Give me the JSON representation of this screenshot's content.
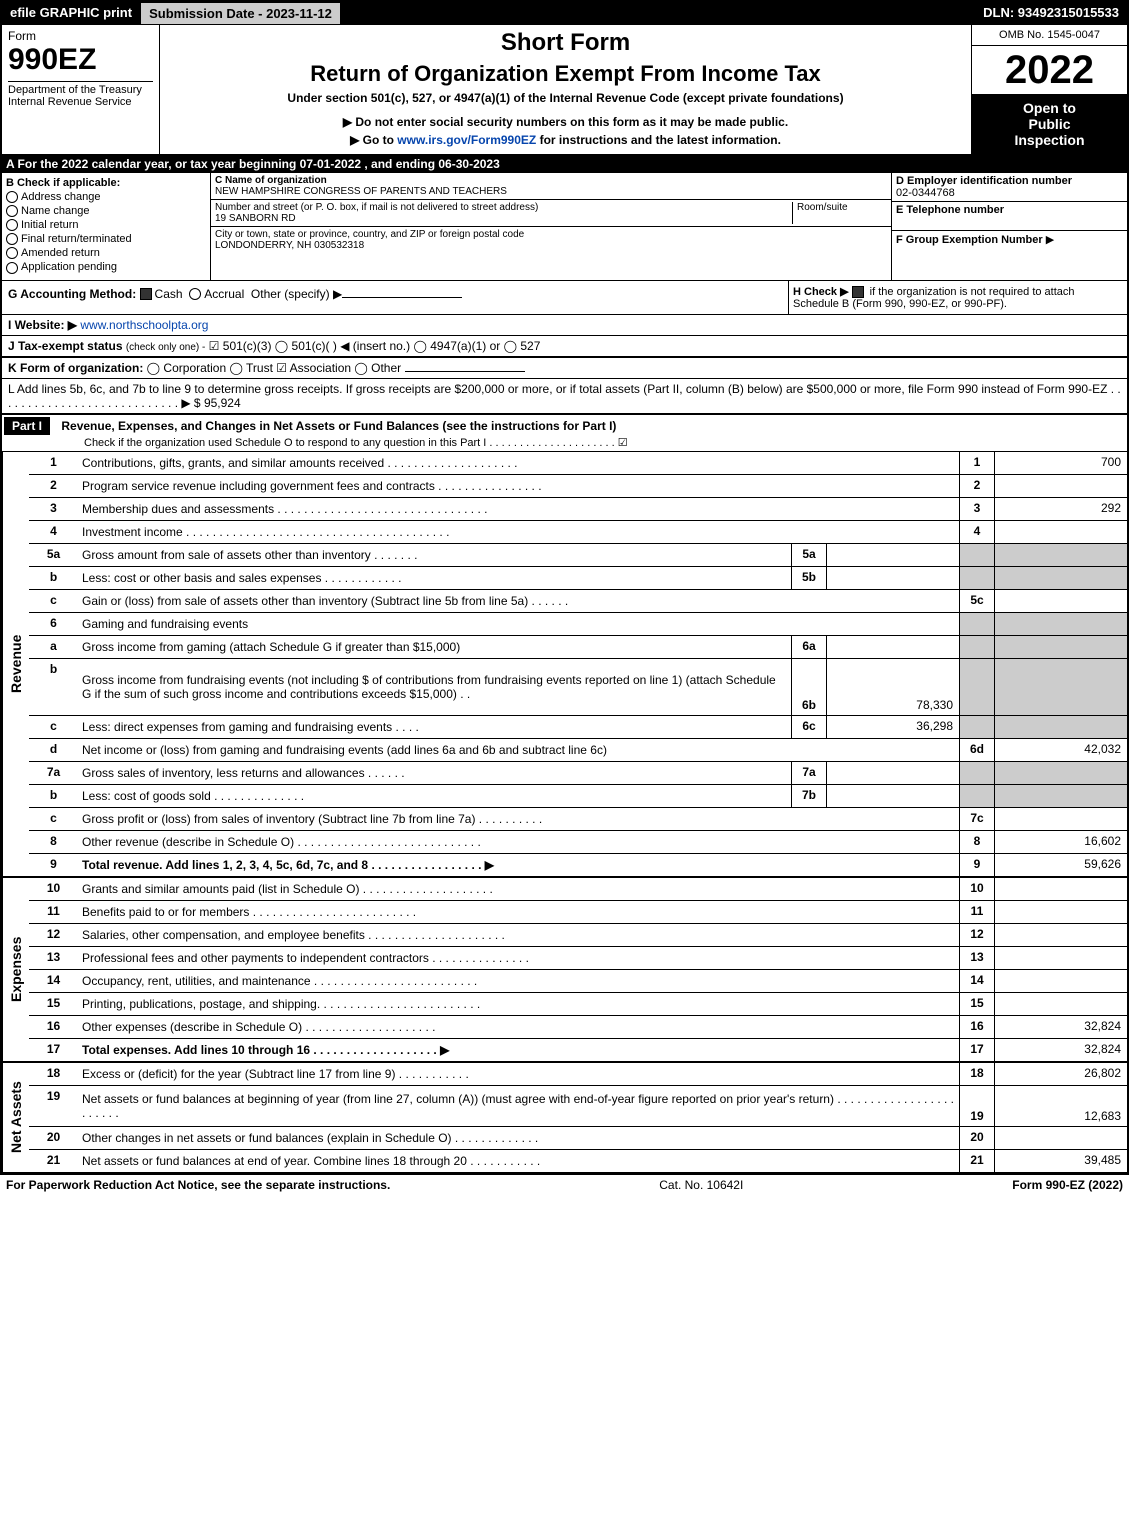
{
  "top_bar": {
    "efile": "efile GRAPHIC print",
    "submission": "Submission Date - 2023-11-12",
    "dln": "DLN: 93492315015533"
  },
  "header": {
    "form_word": "Form",
    "form_num": "990EZ",
    "dept": "Department of the Treasury",
    "irs": "Internal Revenue Service",
    "short_form": "Short Form",
    "title": "Return of Organization Exempt From Income Tax",
    "subtitle": "Under section 501(c), 527, or 4947(a)(1) of the Internal Revenue Code (except private foundations)",
    "instruct1": "Do not enter social security numbers on this form as it may be made public.",
    "instruct2": "Go to www.irs.gov/Form990EZ for instructions and the latest information.",
    "omb": "OMB No. 1545-0047",
    "year": "2022",
    "inspection1": "Open to",
    "inspection2": "Public",
    "inspection3": "Inspection"
  },
  "section_a": {
    "text": "A  For the 2022 calendar year, or tax year beginning 07-01-2022  , and ending 06-30-2023"
  },
  "section_b": {
    "title": "B  Check if applicable:",
    "items": [
      "Address change",
      "Name change",
      "Initial return",
      "Final return/terminated",
      "Amended return",
      "Application pending"
    ]
  },
  "section_c": {
    "c_label": "C Name of organization",
    "c_value": "NEW HAMPSHIRE CONGRESS OF PARENTS AND TEACHERS",
    "addr_label": "Number and street (or P. O. box, if mail is not delivered to street address)",
    "addr_value": "19 SANBORN RD",
    "room_label": "Room/suite",
    "city_label": "City or town, state or province, country, and ZIP or foreign postal code",
    "city_value": "LONDONDERRY, NH   030532318"
  },
  "section_right": {
    "d_label": "D Employer identification number",
    "d_value": "02-0344768",
    "e_label": "E Telephone number",
    "e_value": "",
    "f_label": "F Group Exemption Number",
    "f_arrow": "▶"
  },
  "section_g": {
    "label": "G Accounting Method:",
    "cash": "Cash",
    "accrual": "Accrual",
    "other": "Other (specify)",
    "arrow": "▶"
  },
  "section_h": {
    "text1": "H   Check ▶",
    "text2": "if the organization is not required to attach Schedule B (Form 990, 990-EZ, or 990-PF)."
  },
  "section_i": {
    "label": "I Website: ▶",
    "value": "www.northschoolpta.org"
  },
  "section_j": {
    "label": "J Tax-exempt status",
    "sub": "(check only one) -",
    "opts": "☑ 501(c)(3)  ◯ 501(c)(   ) ◀ (insert no.)  ◯ 4947(a)(1) or  ◯ 527"
  },
  "section_k": {
    "label": "K Form of organization:",
    "opts": "◯ Corporation   ◯ Trust   ☑ Association   ◯ Other"
  },
  "section_l": {
    "text": "L Add lines 5b, 6c, and 7b to line 9 to determine gross receipts. If gross receipts are $200,000 or more, or if total assets (Part II, column (B) below) are $500,000 or more, file Form 990 instead of Form 990-EZ  .  .  .  .  .  .  .  .  .  .  .  .  .  .  .  .  .  .  .  .  .  .  .  .  .  .  .  .  ▶ $ 95,924"
  },
  "part1": {
    "label": "Part I",
    "title": "Revenue, Expenses, and Changes in Net Assets or Fund Balances (see the instructions for Part I)",
    "check": "Check if the organization used Schedule O to respond to any question in this Part I  .  .  .  .  .  .  .  .  .  .  .  .  .  .  .  .  .  .  .  .  .  ☑"
  },
  "sideways": {
    "revenue": "Revenue",
    "expenses": "Expenses",
    "netassets": "Net Assets"
  },
  "lines_revenue": [
    {
      "n": "1",
      "desc": "Contributions, gifts, grants, and similar amounts received  .  .  .  .  .  .  .  .  .  .  .  .  .  .  .  .  .  .  .  .",
      "rn": "1",
      "rv": "700"
    },
    {
      "n": "2",
      "desc": "Program service revenue including government fees and contracts  .  .  .  .  .  .  .  .  .  .  .  .  .  .  .  .",
      "rn": "2",
      "rv": ""
    },
    {
      "n": "3",
      "desc": "Membership dues and assessments  .  .  .  .  .  .  .  .  .  .  .  .  .  .  .  .  .  .  .  .  .  .  .  .  .  .  .  .  .  .  .  .",
      "rn": "3",
      "rv": "292"
    },
    {
      "n": "4",
      "desc": "Investment income  .  .  .  .  .  .  .  .  .  .  .  .  .  .  .  .  .  .  .  .  .  .  .  .  .  .  .  .  .  .  .  .  .  .  .  .  .  .  .  .",
      "rn": "4",
      "rv": ""
    }
  ],
  "lines_5": [
    {
      "n": "5a",
      "desc": "Gross amount from sale of assets other than inventory  .  .  .  .  .  .  .",
      "sn": "5a",
      "sv": ""
    },
    {
      "n": "b",
      "desc": "Less: cost or other basis and sales expenses  .  .  .  .  .  .  .  .  .  .  .  .",
      "sn": "5b",
      "sv": ""
    }
  ],
  "line_5c": {
    "n": "c",
    "desc": "Gain or (loss) from sale of assets other than inventory (Subtract line 5b from line 5a)  .  .  .  .  .  .",
    "rn": "5c",
    "rv": ""
  },
  "line_6": {
    "n": "6",
    "desc": "Gaming and fundraising events"
  },
  "lines_6": [
    {
      "n": "a",
      "desc": "Gross income from gaming (attach Schedule G if greater than $15,000)",
      "sn": "6a",
      "sv": ""
    },
    {
      "n": "b",
      "desc": "Gross income from fundraising events (not including $                            of contributions from fundraising events reported on line 1) (attach Schedule G if the sum of such gross income and contributions exceeds $15,000)    .    .",
      "sn": "6b",
      "sv": "78,330"
    },
    {
      "n": "c",
      "desc": "Less: direct expenses from gaming and fundraising events    .    .    .    .",
      "sn": "6c",
      "sv": "36,298"
    }
  ],
  "line_6d": {
    "n": "d",
    "desc": "Net income or (loss) from gaming and fundraising events (add lines 6a and 6b and subtract line 6c)",
    "rn": "6d",
    "rv": "42,032"
  },
  "lines_7": [
    {
      "n": "7a",
      "desc": "Gross sales of inventory, less returns and allowances  .  .  .  .  .  .",
      "sn": "7a",
      "sv": ""
    },
    {
      "n": "b",
      "desc": "Less: cost of goods sold     .    .    .    .    .    .    .    .    .    .    .    .    .    .",
      "sn": "7b",
      "sv": ""
    }
  ],
  "line_7c": {
    "n": "c",
    "desc": "Gross profit or (loss) from sales of inventory (Subtract line 7b from line 7a)  .  .  .  .  .  .  .  .  .  .",
    "rn": "7c",
    "rv": ""
  },
  "line_8": {
    "n": "8",
    "desc": "Other revenue (describe in Schedule O)  .  .  .  .  .  .  .  .  .  .  .  .  .  .  .  .  .  .  .  .  .  .  .  .  .  .  .  .",
    "rn": "8",
    "rv": "16,602"
  },
  "line_9": {
    "n": "9",
    "desc": "Total revenue. Add lines 1, 2, 3, 4, 5c, 6d, 7c, and 8   .   .   .   .   .   .   .   .   .   .   .   .   .   .   .   .   .   ▶",
    "rn": "9",
    "rv": "59,626"
  },
  "lines_expenses": [
    {
      "n": "10",
      "desc": "Grants and similar amounts paid (list in Schedule O)  .  .  .  .  .  .  .  .  .  .  .  .  .  .  .  .  .  .  .  .",
      "rn": "10",
      "rv": ""
    },
    {
      "n": "11",
      "desc": "Benefits paid to or for members   .   .   .   .   .   .   .   .   .   .   .   .   .   .   .   .   .   .   .   .   .   .   .   .   .",
      "rn": "11",
      "rv": ""
    },
    {
      "n": "12",
      "desc": "Salaries, other compensation, and employee benefits  .  .  .  .  .  .  .  .  .  .  .  .  .  .  .  .  .  .  .  .  .",
      "rn": "12",
      "rv": ""
    },
    {
      "n": "13",
      "desc": "Professional fees and other payments to independent contractors  .  .  .  .  .  .  .  .  .  .  .  .  .  .  .",
      "rn": "13",
      "rv": ""
    },
    {
      "n": "14",
      "desc": "Occupancy, rent, utilities, and maintenance  .  .  .  .  .  .  .  .  .  .  .  .  .  .  .  .  .  .  .  .  .  .  .  .  .",
      "rn": "14",
      "rv": ""
    },
    {
      "n": "15",
      "desc": "Printing, publications, postage, and shipping.  .  .  .  .  .  .  .  .  .  .  .  .  .  .  .  .  .  .  .  .  .  .  .  .",
      "rn": "15",
      "rv": ""
    },
    {
      "n": "16",
      "desc": "Other expenses (describe in Schedule O)    .   .   .   .   .   .   .   .   .   .   .   .   .   .   .   .   .   .   .   .",
      "rn": "16",
      "rv": "32,824"
    },
    {
      "n": "17",
      "desc": "Total expenses. Add lines 10 through 16    .   .   .   .   .   .   .   .   .   .   .   .   .   .   .   .   .   .   .   ▶",
      "rn": "17",
      "rv": "32,824"
    }
  ],
  "lines_netassets": [
    {
      "n": "18",
      "desc": "Excess or (deficit) for the year (Subtract line 17 from line 9)       .    .    .    .    .    .    .    .    .    .    .",
      "rn": "18",
      "rv": "26,802"
    },
    {
      "n": "19",
      "desc": "Net assets or fund balances at beginning of year (from line 27, column (A)) (must agree with end-of-year figure reported on prior year's return)  .  .  .  .  .  .  .  .  .  .  .  .  .  .  .  .  .  .  .  .  .  .  .  .",
      "rn": "19",
      "rv": "12,683",
      "tall": true
    },
    {
      "n": "20",
      "desc": "Other changes in net assets or fund balances (explain in Schedule O)  .  .  .  .  .  .  .  .  .  .  .  .  .",
      "rn": "20",
      "rv": ""
    },
    {
      "n": "21",
      "desc": "Net assets or fund balances at end of year. Combine lines 18 through 20  .  .  .  .  .  .  .  .  .  .  .",
      "rn": "21",
      "rv": "39,485"
    }
  ],
  "footer": {
    "left": "For Paperwork Reduction Act Notice, see the separate instructions.",
    "center": "Cat. No. 10642I",
    "right": "Form 990-EZ (2022)"
  }
}
